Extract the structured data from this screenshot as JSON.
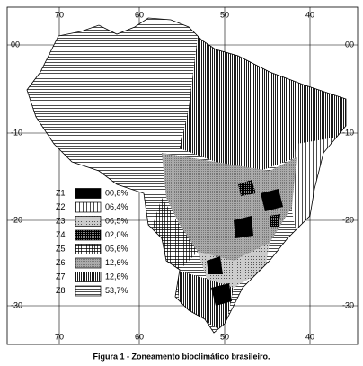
{
  "longitude_labels_top": [
    "70",
    "60",
    "50",
    "40"
  ],
  "longitude_labels_bottom": [
    "70",
    "60",
    "50",
    "40"
  ],
  "latitude_labels_left": [
    "00",
    "-10",
    "-20",
    "-30"
  ],
  "latitude_labels_right": [
    "00",
    "-10",
    "-20",
    "-30"
  ],
  "legend": [
    {
      "zone": "Z1",
      "share": "00,8%"
    },
    {
      "zone": "Z2",
      "share": "06,4%"
    },
    {
      "zone": "Z3",
      "share": "06,5%"
    },
    {
      "zone": "Z4",
      "share": "02,0%"
    },
    {
      "zone": "Z5",
      "share": "05,6%"
    },
    {
      "zone": "Z6",
      "share": "12,6%"
    },
    {
      "zone": "Z7",
      "share": "12,6%"
    },
    {
      "zone": "Z8",
      "share": "53,7%"
    }
  ],
  "caption": "Figura 1 - Zoneamento bioclimático brasileiro."
}
